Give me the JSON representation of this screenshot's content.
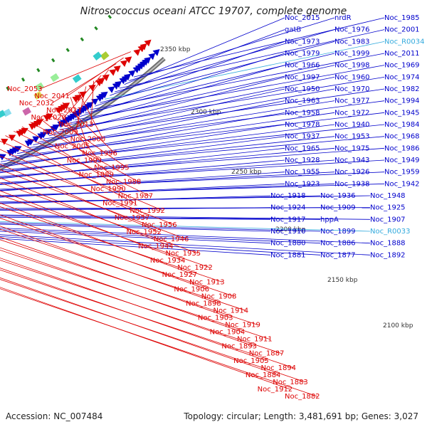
{
  "title": "Nitrosococcus oceani ATCC 19707, complete genome",
  "footer": {
    "accession": "Accession: NC_007484",
    "info": "Topology: circular; Length: 3,481,691 bp; Genes: 3,027"
  },
  "colors": {
    "background": "#ffffff",
    "backbone": "#888888",
    "forward_strand": "#0000cc",
    "reverse_strand": "#dd0000",
    "rna_label": "#33aadd",
    "tick": "#228822"
  },
  "scale_labels": [
    "2350 kbp",
    "2300 kbp",
    "2250 kbp",
    "2200 kbp",
    "2150 kbp",
    "2100 kbp"
  ],
  "forward_labels": [
    "Noc_1985",
    "nrdR",
    "Noc_2015",
    "Noc_2001",
    "Noc_1976",
    "gatB",
    "Noc_R0034",
    "Noc_1983",
    "Noc_1973",
    "Noc_2011",
    "Noc_1999",
    "Noc_1979",
    "Noc_1969",
    "Noc_1998",
    "Noc_1966",
    "Noc_1974",
    "Noc_1960",
    "Noc_1997",
    "Noc_1982",
    "Noc_1970",
    "Noc_1950",
    "Noc_1994",
    "Noc_1977",
    "Noc_1963",
    "Noc_1945",
    "Noc_1972",
    "Noc_1958",
    "Noc_1984",
    "Noc_1940",
    "Noc_1978",
    "Noc_1968",
    "Noc_1953",
    "Noc_1937",
    "Noc_1986",
    "Noc_1975",
    "Noc_1965",
    "Noc_1949",
    "Noc_1943",
    "Noc_1928",
    "Noc_1959",
    "Noc_1926",
    "Noc_1955",
    "Noc_1942",
    "Noc_1938",
    "Noc_1923",
    "Noc_1948",
    "Noc_1936",
    "Noc_1918",
    "Noc_1925",
    "Noc_1909",
    "Noc_1924",
    "Noc_1907",
    "hppA",
    "Noc_1917",
    "Noc_R0033",
    "Noc_1899",
    "Noc_1910",
    "Noc_1888",
    "Noc_1886",
    "Noc_1880",
    "Noc_1892",
    "Noc_1877",
    "Noc_1881"
  ],
  "reverse_labels": [
    "Noc_2053",
    "Noc_2041",
    "Noc_2032",
    "Noc_2021",
    "Noc_2020",
    "Noc_2013",
    "Noc_2009",
    "Noc_2000",
    "Noc_2005",
    "Noc_1996",
    "Noc_1993",
    "Noc_1995",
    "Noc_1989",
    "Noc_1988",
    "Noc_1990",
    "Noc_1987",
    "Noc_1991",
    "Noc_1992",
    "Noc_1957",
    "Noc_1956",
    "Noc_1952",
    "Noc_1946",
    "Noc_1944",
    "Noc_1935",
    "Noc_1934",
    "Noc_1922",
    "Noc_1927",
    "Noc_1913",
    "Noc_1906",
    "Noc_1908",
    "Noc_1898",
    "Noc_1914",
    "Noc_1903",
    "Noc_1919",
    "Noc_1904",
    "Noc_1911",
    "Noc_1893",
    "Noc_1887",
    "Noc_1905",
    "Noc_1894",
    "Noc_1884",
    "Noc_1883",
    "Noc_1912",
    "Noc_1882"
  ]
}
